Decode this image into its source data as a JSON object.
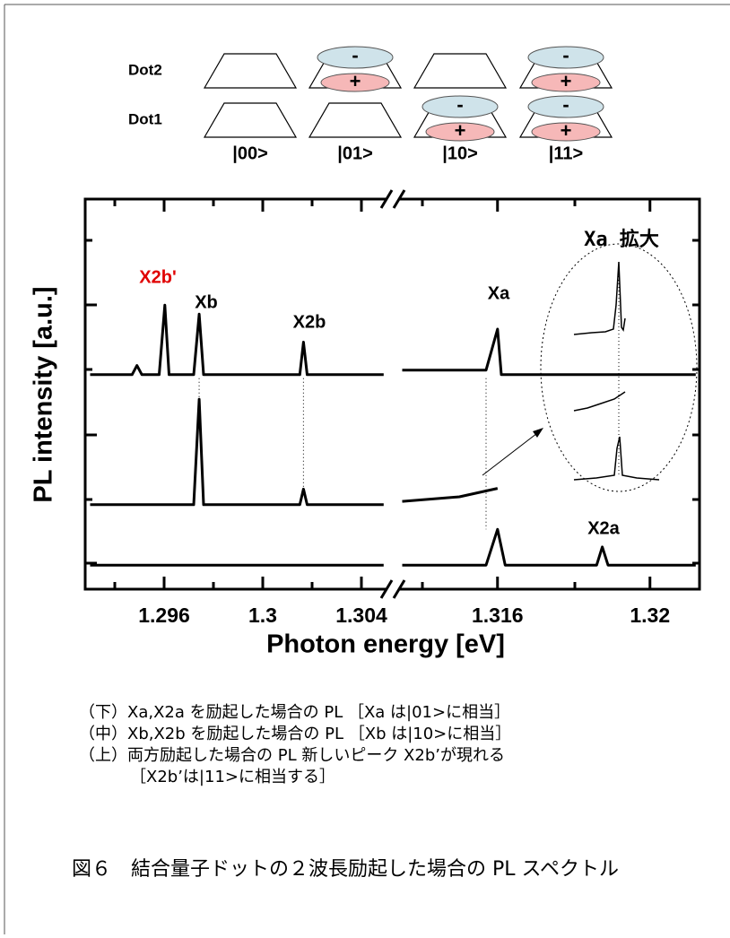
{
  "diagram": {
    "rows": [
      "Dot2",
      "Dot1"
    ],
    "states": [
      "|00>",
      "|01>",
      "|10>",
      "|11>"
    ],
    "minus": "-",
    "plus": "+"
  },
  "chart_data": {
    "type": "line",
    "y_label": "PL intensity [a.u.]",
    "x_label": "Photon energy [eV]",
    "ylim": [
      0,
      6
    ],
    "segments": [
      {
        "xlim": [
          1.2928,
          1.3052
        ],
        "xticks": [
          1.296,
          1.3,
          1.304
        ]
      },
      {
        "xlim": [
          1.3133,
          1.3213
        ],
        "xticks": [
          1.316,
          1.32
        ]
      }
    ],
    "series": [
      {
        "color": "#000000",
        "x": [
          1.293,
          1.2947,
          1.2949,
          1.2951,
          1.2958,
          1.29603,
          1.2962,
          1.2972,
          1.29742,
          1.2976,
          1.3015,
          1.30165,
          1.3018,
          1.3049,
          null,
          1.3135,
          1.3157,
          1.316,
          1.3161,
          1.3212
        ],
        "values": [
          3.3,
          3.3,
          3.44,
          3.3,
          3.3,
          4.37,
          3.3,
          3.3,
          4.23,
          3.3,
          3.3,
          3.8,
          3.3,
          3.3,
          null,
          3.37,
          3.37,
          4.0,
          3.3,
          3.3
        ]
      },
      {
        "color": "#000000",
        "x": [
          1.293,
          1.2972,
          1.29742,
          1.2976,
          1.3015,
          1.30165,
          1.3018,
          1.3049,
          null,
          1.3135,
          1.315,
          1.316
        ],
        "values": [
          1.3,
          1.3,
          2.92,
          1.3,
          1.3,
          1.54,
          1.3,
          1.3,
          null,
          1.35,
          1.42,
          1.55
        ]
      },
      {
        "color": "#000000",
        "x": [
          1.293,
          1.3049,
          null,
          1.3135,
          1.3157,
          1.316,
          1.3162,
          1.3186,
          1.31875,
          1.3189,
          1.3212
        ],
        "values": [
          0.37,
          0.37,
          null,
          0.37,
          0.37,
          0.92,
          0.37,
          0.37,
          0.65,
          0.37,
          0.37
        ]
      }
    ],
    "annotations": [
      {
        "text": "X2b'",
        "color": "#e00000"
      },
      {
        "text": "Xb",
        "color": "#000000"
      },
      {
        "text": "X2b",
        "color": "#000000"
      },
      {
        "text": "Xa",
        "color": "#000000"
      },
      {
        "text": "X2a",
        "color": "#000000"
      }
    ],
    "inset_title": "Xa 拡大"
  },
  "notes": [
    "（下）Xa,X2a を励起した場合の PL ［Xa は|01>に相当］",
    "（中）Xb,X2b を励起した場合の PL ［Xb は|10>に相当］",
    "（上）両方励起した場合の PL 新しいピーク X2b’が現れる",
    "［X2b’は|11>に相当する］"
  ],
  "caption": "図６　結合量子ドットの２波長励起した場合の PL スペクトル"
}
